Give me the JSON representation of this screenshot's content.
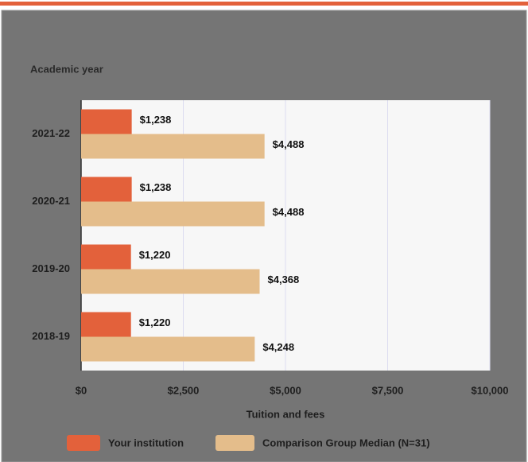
{
  "chart_data": {
    "type": "bar",
    "orientation": "horizontal",
    "ylabel": "Academic year",
    "xlabel": "Tuition and fees",
    "categories": [
      "2021-22",
      "2020-21",
      "2019-20",
      "2018-19"
    ],
    "series": [
      {
        "name": "Your institution",
        "color": "#e3613b",
        "values": [
          1238,
          1238,
          1220,
          1220
        ],
        "value_labels": [
          "$1,238",
          "$1,238",
          "$1,220",
          "$1,220"
        ]
      },
      {
        "name": "Comparison Group Median (N=31)",
        "color": "#e4bd8b",
        "values": [
          4488,
          4488,
          4368,
          4248
        ],
        "value_labels": [
          "$4,488",
          "$4,488",
          "$4,368",
          "$4,248"
        ]
      }
    ],
    "xlim": [
      0,
      10000
    ],
    "xticks": [
      {
        "value": 0,
        "label": "$0"
      },
      {
        "value": 2500,
        "label": "$2,500"
      },
      {
        "value": 5000,
        "label": "$5,000"
      },
      {
        "value": 7500,
        "label": "$7,500"
      },
      {
        "value": 10000,
        "label": "$10,000"
      }
    ],
    "grid": true
  }
}
